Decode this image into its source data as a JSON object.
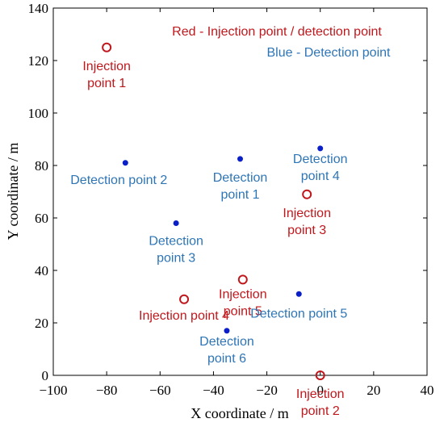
{
  "chart_data": {
    "type": "scatter",
    "xlabel": "X coordinate / m",
    "ylabel": "Y coordinate / m",
    "xlim": [
      -100,
      40
    ],
    "ylim": [
      0,
      140
    ],
    "xticks": [
      -100,
      -80,
      -60,
      -40,
      -20,
      0,
      20,
      40
    ],
    "yticks": [
      0,
      20,
      40,
      60,
      80,
      100,
      120,
      140
    ],
    "xtick_labels": [
      "−100",
      "−80",
      "−60",
      "−40",
      "−20",
      "0",
      "20",
      "40"
    ],
    "ytick_labels": [
      "0",
      "20",
      "40",
      "60",
      "80",
      "100",
      "120",
      "140"
    ],
    "grid": false,
    "legend": [
      {
        "text": "Red - Injection point / detection point",
        "color": "#c0171c"
      },
      {
        "text": "Blue - Detection point",
        "color": "#2e75b6"
      }
    ],
    "series": [
      {
        "marker": "open-circle",
        "color": "#c0171c",
        "points": [
          {
            "x": -80,
            "y": 125,
            "label": [
              "Injection",
              "point 1"
            ]
          },
          {
            "x": 0,
            "y": 0,
            "label": [
              "Injection",
              "point 2"
            ]
          },
          {
            "x": -5,
            "y": 69,
            "label": [
              "Injection",
              "point 3"
            ]
          },
          {
            "x": -51,
            "y": 29,
            "label": [
              "Injection point 4"
            ]
          },
          {
            "x": -29,
            "y": 36.5,
            "label": [
              "Injection",
              "point 5"
            ]
          }
        ]
      },
      {
        "marker": "filled-circle",
        "color": "#0a1fc8",
        "label_color": "#2e75b6",
        "points": [
          {
            "x": -30,
            "y": 82.5,
            "label": [
              "Detection",
              "point 1"
            ]
          },
          {
            "x": -73,
            "y": 81,
            "label": [
              "Detection point 2"
            ]
          },
          {
            "x": -54,
            "y": 58,
            "label": [
              "Detection",
              "point 3"
            ]
          },
          {
            "x": 0,
            "y": 86.5,
            "label": [
              "Detection",
              "point 4"
            ]
          },
          {
            "x": -8,
            "y": 31,
            "label": [
              "Detection point 5"
            ]
          },
          {
            "x": -35,
            "y": 17,
            "label": [
              "Detection",
              "point 6"
            ]
          }
        ]
      }
    ]
  }
}
